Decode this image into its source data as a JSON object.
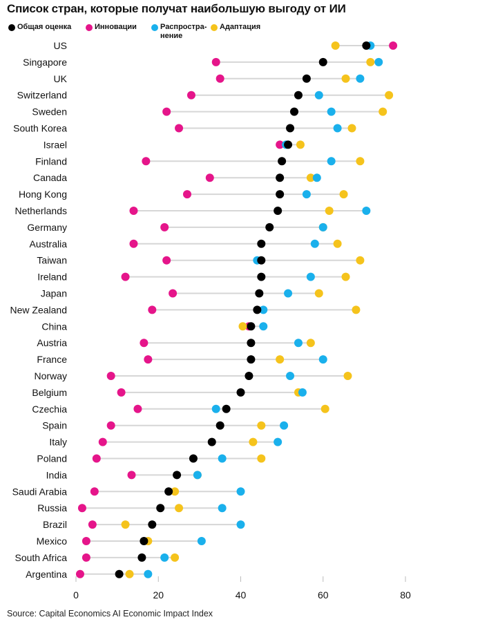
{
  "title": "Список стран, которые получат наибольшую выгоду от ИИ",
  "source": "Source: Capital Economics AI Economic Impact Index",
  "colors": {
    "overall": "#000000",
    "innovation": "#e5158a",
    "diffusion": "#1ab0ec",
    "adaptation": "#f5c31c",
    "connector": "#d6d6d6",
    "axis": "#bbbbbb"
  },
  "legend": [
    {
      "key": "overall",
      "label": "Общая оценка"
    },
    {
      "key": "innovation",
      "label": "Инновации"
    },
    {
      "key": "diffusion",
      "label": "Распростра-\nнение"
    },
    {
      "key": "adaptation",
      "label": "Адаптация"
    }
  ],
  "chart_data": {
    "type": "scatter",
    "subtype": "dot-plot",
    "title": "Список стран, которые получат наибольшую выгоду от ИИ",
    "xlim": [
      0,
      80
    ],
    "xticks": [
      0,
      20,
      40,
      60,
      80
    ],
    "grid": false,
    "legend_position": "top-left",
    "categories": [
      "US",
      "Singapore",
      "UK",
      "Switzerland",
      "Sweden",
      "South Korea",
      "Israel",
      "Finland",
      "Canada",
      "Hong Kong",
      "Netherlands",
      "Germany",
      "Australia",
      "Taiwan",
      "Ireland",
      "Japan",
      "New Zealand",
      "China",
      "Austria",
      "France",
      "Norway",
      "Belgium",
      "Czechia",
      "Spain",
      "Italy",
      "Poland",
      "India",
      "Saudi Arabia",
      "Russia",
      "Brazil",
      "Mexico",
      "South Africa",
      "Argentina"
    ],
    "series": [
      {
        "key": "innovation",
        "name": "Инновации",
        "values": [
          77,
          34,
          35,
          28,
          22,
          25,
          49.5,
          17,
          32.5,
          27,
          14,
          21.5,
          14,
          22,
          12,
          23.5,
          18.5,
          42,
          16.5,
          17.5,
          8.5,
          11,
          15,
          8.5,
          6.5,
          5,
          13.5,
          4.5,
          1.5,
          4,
          2.5,
          2.5,
          1
        ]
      },
      {
        "key": "diffusion",
        "name": "Распространение",
        "values": [
          71.5,
          73.5,
          69,
          59,
          62,
          63.5,
          51,
          62,
          58.5,
          56,
          70.5,
          60,
          58,
          44,
          57,
          51.5,
          45.5,
          45.5,
          54,
          60,
          52,
          55,
          34,
          50.5,
          49,
          35.5,
          29.5,
          40,
          35.5,
          40,
          30.5,
          21.5,
          17.5
        ]
      },
      {
        "key": "adaptation",
        "name": "Адаптация",
        "values": [
          63,
          71.5,
          65.5,
          76,
          74.5,
          67,
          54.5,
          69,
          57,
          65,
          61.5,
          60,
          63.5,
          69,
          65.5,
          59,
          68,
          40.5,
          57,
          49.5,
          66,
          54,
          60.5,
          45,
          43,
          45,
          29.5,
          24,
          25,
          12,
          17.5,
          24,
          13
        ]
      },
      {
        "key": "overall",
        "name": "Общая оценка",
        "values": [
          70.5,
          60,
          56,
          54,
          53,
          52,
          51.5,
          50,
          49.5,
          49.5,
          49,
          47,
          45,
          45,
          45,
          44.5,
          44,
          42.5,
          42.5,
          42.5,
          42,
          40,
          36.5,
          35,
          33,
          28.5,
          24.5,
          22.5,
          20.5,
          18.5,
          16.5,
          16,
          10.5
        ]
      }
    ]
  }
}
